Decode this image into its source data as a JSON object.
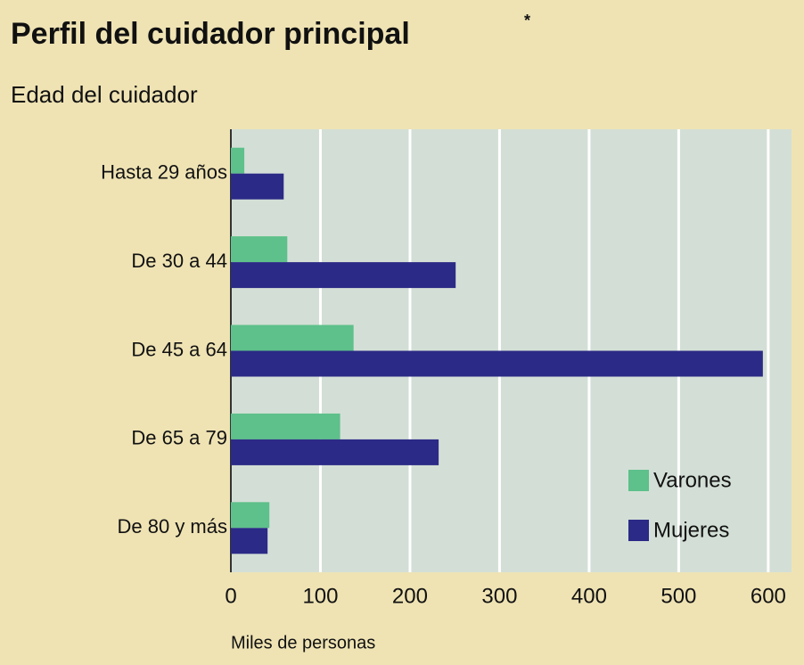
{
  "chart_data": {
    "type": "barh",
    "title": "Perfil del cuidador principal",
    "title_note": "*",
    "subtitle": "Edad del cuidador",
    "xlabel": "Miles de personas",
    "categories": [
      "Hasta 29 años",
      "De 30 a 44",
      "De 45 a 64",
      "De 65 a 79",
      "De 80 y más"
    ],
    "series": [
      {
        "name": "Varones",
        "color": "#5ec08b",
        "values": [
          15,
          63,
          137,
          122,
          43
        ]
      },
      {
        "name": "Mujeres",
        "color": "#2b2a86",
        "values": [
          59,
          251,
          594,
          232,
          41
        ]
      }
    ],
    "xlim": [
      0,
      626
    ],
    "xticks": [
      0,
      100,
      200,
      300,
      400,
      500,
      600
    ],
    "grid": true,
    "legend": "lower right"
  }
}
